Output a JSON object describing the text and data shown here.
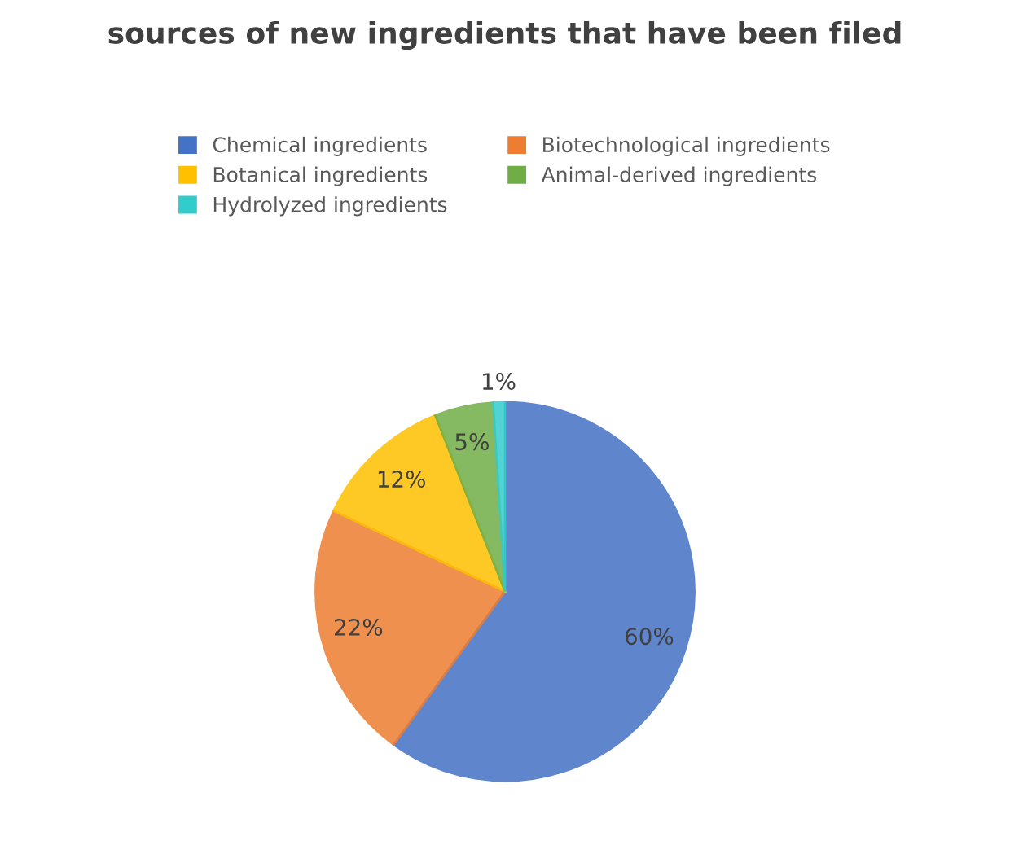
{
  "chart_data": {
    "type": "pie",
    "title": "sources of new ingredients that have been filed",
    "categories": [
      "Chemical ingredients",
      "Biotechnological ingredients",
      "Botanical ingredients",
      "Animal-derived ingredients",
      "Hydrolyzed ingredients"
    ],
    "values": [
      60,
      22,
      12,
      5,
      1
    ],
    "colors": [
      "#4472c4",
      "#ed7d31",
      "#ffc000",
      "#70ad47",
      "#33cccc"
    ],
    "value_labels": [
      "60%",
      "22%",
      "12%",
      "5%",
      "1%"
    ],
    "legend": "top"
  }
}
